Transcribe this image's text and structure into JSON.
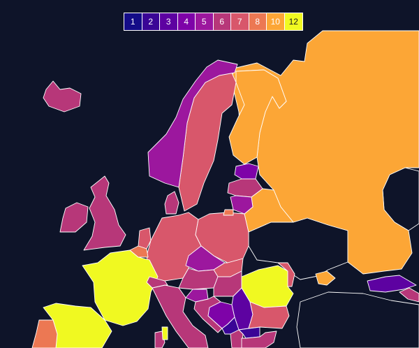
{
  "legend": {
    "items": [
      {
        "label": "1",
        "color": "#140c88"
      },
      {
        "label": "2",
        "color": "#3a0596"
      },
      {
        "label": "3",
        "color": "#5d02a1"
      },
      {
        "label": "4",
        "color": "#7e03a8"
      },
      {
        "label": "5",
        "color": "#9c179e"
      },
      {
        "label": "6",
        "color": "#b73779"
      },
      {
        "label": "7",
        "color": "#d8576b"
      },
      {
        "label": "8",
        "color": "#ec7853"
      },
      {
        "label": "10",
        "color": "#fca636"
      },
      {
        "label": "12",
        "color": "#f0f921"
      }
    ]
  },
  "regions": [
    {
      "id": "russia",
      "value": "10"
    },
    {
      "id": "finland",
      "value": "10"
    },
    {
      "id": "sweden",
      "value": "7"
    },
    {
      "id": "norway",
      "value": "5"
    },
    {
      "id": "iceland",
      "value": "6"
    },
    {
      "id": "uk",
      "value": "6"
    },
    {
      "id": "ireland",
      "value": "6"
    },
    {
      "id": "germany",
      "value": "7"
    },
    {
      "id": "poland",
      "value": "7"
    },
    {
      "id": "france",
      "value": "12"
    },
    {
      "id": "spain",
      "value": "12"
    },
    {
      "id": "portugal",
      "value": "8"
    },
    {
      "id": "italy",
      "value": "6"
    },
    {
      "id": "romania",
      "value": "12"
    },
    {
      "id": "belarus",
      "value": "10"
    },
    {
      "id": "estonia",
      "value": "4"
    },
    {
      "id": "latvia",
      "value": "6"
    },
    {
      "id": "lithuania",
      "value": "5"
    },
    {
      "id": "czechia",
      "value": "5"
    },
    {
      "id": "austria",
      "value": "6"
    },
    {
      "id": "hungary",
      "value": "6"
    },
    {
      "id": "slovakia",
      "value": "7"
    },
    {
      "id": "switzerland",
      "value": "6"
    },
    {
      "id": "belgium",
      "value": "8"
    },
    {
      "id": "netherlands",
      "value": "7"
    },
    {
      "id": "denmark",
      "value": "6"
    },
    {
      "id": "slovenia",
      "value": "5"
    },
    {
      "id": "croatia",
      "value": "6"
    },
    {
      "id": "bosnia",
      "value": "4"
    },
    {
      "id": "serbia",
      "value": "3"
    },
    {
      "id": "montenegro",
      "value": "2"
    },
    {
      "id": "albania",
      "value": "6"
    },
    {
      "id": "macedonia",
      "value": "2"
    },
    {
      "id": "bulgaria",
      "value": "7"
    },
    {
      "id": "moldova",
      "value": "7"
    },
    {
      "id": "georgia",
      "value": "3"
    },
    {
      "id": "azerbaijan",
      "value": "6"
    },
    {
      "id": "crimea",
      "value": "10"
    },
    {
      "id": "sardinia",
      "value": "6"
    },
    {
      "id": "corsica",
      "value": "12"
    },
    {
      "id": "greece",
      "value": "6"
    },
    {
      "id": "kaliningrad",
      "value": "8"
    }
  ]
}
